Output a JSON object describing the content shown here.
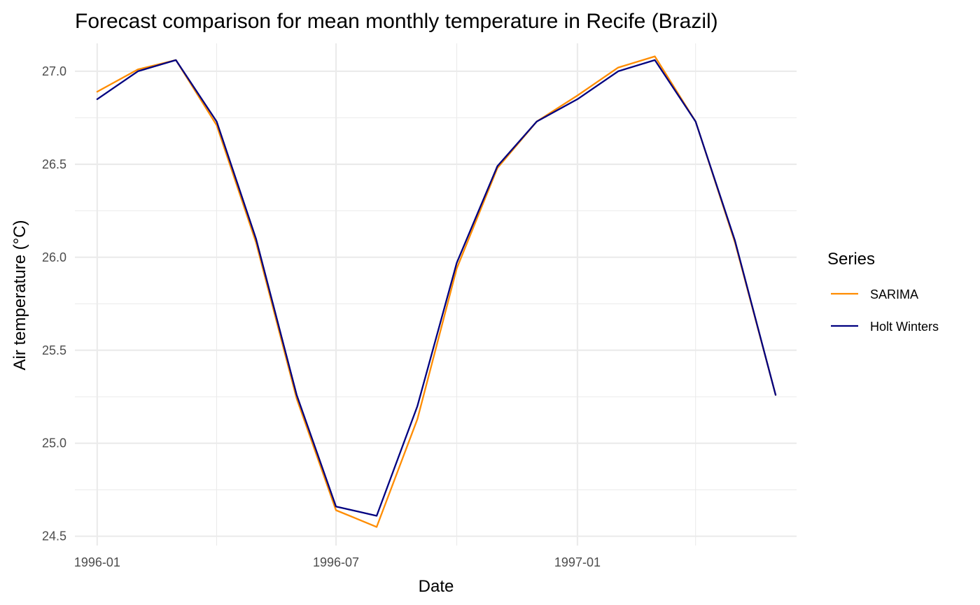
{
  "chart_data": {
    "type": "line",
    "title": "Forecast comparison for mean monthly temperature in Recife (Brazil)",
    "xlabel": "Date",
    "ylabel": "Air temperature (°C)",
    "x": [
      "1996-01",
      "1996-02",
      "1996-03",
      "1996-04",
      "1996-05",
      "1996-06",
      "1996-07",
      "1996-08",
      "1996-09",
      "1996-10",
      "1996-11",
      "1996-12",
      "1997-01",
      "1997-02",
      "1997-03",
      "1997-04",
      "1997-05",
      "1997-06"
    ],
    "x_ticks": [
      "1996-01",
      "1996-07",
      "1997-01"
    ],
    "y_ticks": [
      24.5,
      25.0,
      25.5,
      26.0,
      26.5,
      27.0
    ],
    "y_tick_labels": [
      "24.5",
      "25.0",
      "25.5",
      "26.0",
      "26.5",
      "27.0"
    ],
    "ylim": [
      24.45,
      27.15
    ],
    "xlim": [
      "1995-12-15",
      "1997-06-17"
    ],
    "grid": true,
    "legend": {
      "title": "Series",
      "placement": "right"
    },
    "series": [
      {
        "name": "SARIMA",
        "color": "#FF8C00",
        "values": [
          26.89,
          27.01,
          27.06,
          26.71,
          26.08,
          25.24,
          24.64,
          24.55,
          25.13,
          25.94,
          26.48,
          26.73,
          26.87,
          27.02,
          27.08,
          26.73,
          26.08,
          25.26
        ]
      },
      {
        "name": "Holt Winters",
        "color": "#000080",
        "values": [
          26.85,
          27.0,
          27.06,
          26.73,
          26.1,
          25.26,
          24.66,
          24.61,
          25.2,
          25.97,
          26.49,
          26.73,
          26.85,
          27.0,
          27.06,
          26.73,
          26.09,
          25.26
        ]
      }
    ]
  }
}
